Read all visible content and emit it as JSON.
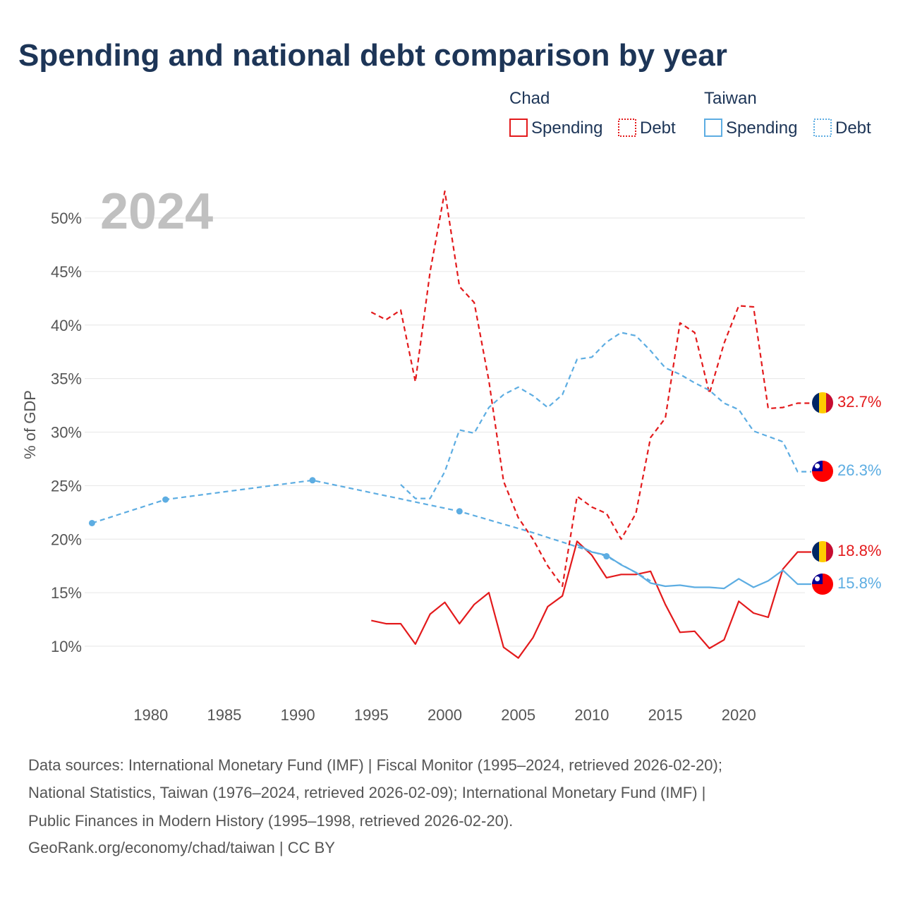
{
  "title": "Spending and national debt comparison by year",
  "year_label": "2024",
  "legend": [
    {
      "group": "Chad",
      "items": [
        {
          "label": "Spending",
          "color": "#e31a1c",
          "style": "solid"
        },
        {
          "label": "Debt",
          "color": "#e31a1c",
          "style": "dotted"
        }
      ]
    },
    {
      "group": "Taiwan",
      "items": [
        {
          "label": "Spending",
          "color": "#5dade2",
          "style": "solid"
        },
        {
          "label": "Debt",
          "color": "#5dade2",
          "style": "dotted"
        }
      ]
    }
  ],
  "chart_data": {
    "type": "line",
    "ylabel": "% of GDP",
    "ylim": [
      6,
      54
    ],
    "xlim": [
      1975.5,
      2024.5
    ],
    "x_ticks": [
      1980,
      1985,
      1990,
      1995,
      2000,
      2005,
      2010,
      2015,
      2020
    ],
    "x_tick_labels": [
      "1980",
      "1985",
      "1990",
      "1995",
      "2000",
      "2005",
      "2010",
      "2015",
      "2020"
    ],
    "y_ticks": [
      10,
      15,
      20,
      25,
      30,
      35,
      40,
      45,
      50
    ],
    "y_tick_labels": [
      "10%",
      "15%",
      "20%",
      "25%",
      "30%",
      "35%",
      "40%",
      "45%",
      "50%"
    ],
    "series": [
      {
        "name": "Chad Spending",
        "country": "Chad",
        "color": "#e31a1c",
        "dash": "",
        "x": [
          1995,
          1996,
          1997,
          1998,
          1999,
          2000,
          2001,
          2002,
          2003,
          2004,
          2005,
          2006,
          2007,
          2008,
          2009,
          2010,
          2011,
          2012,
          2013,
          2014,
          2015,
          2016,
          2017,
          2018,
          2019,
          2020,
          2021,
          2022,
          2023,
          2024
        ],
        "values": [
          12.4,
          12.1,
          12.1,
          10.2,
          13.0,
          14.1,
          12.1,
          13.9,
          15.0,
          9.9,
          8.9,
          10.8,
          13.7,
          14.7,
          19.8,
          18.5,
          16.4,
          16.7,
          16.7,
          17.0,
          13.9,
          11.3,
          11.4,
          9.8,
          10.6,
          14.2,
          13.1,
          12.7,
          17.2,
          18.8
        ],
        "end_label": "18.8%"
      },
      {
        "name": "Chad Debt",
        "country": "Chad",
        "color": "#e31a1c",
        "dash": "7,5",
        "x": [
          1995,
          1996,
          1997,
          1998,
          1999,
          2000,
          2001,
          2002,
          2003,
          2004,
          2005,
          2006,
          2007,
          2008,
          2009,
          2010,
          2011,
          2012,
          2013,
          2014,
          2015,
          2016,
          2017,
          2018,
          2019,
          2020,
          2021,
          2022,
          2023,
          2024
        ],
        "values": [
          41.2,
          40.5,
          41.4,
          34.7,
          45.0,
          52.5,
          43.6,
          42.1,
          34.8,
          25.4,
          22.0,
          20.0,
          17.5,
          15.6,
          24.0,
          23.0,
          22.4,
          20.0,
          22.4,
          29.5,
          31.3,
          40.2,
          39.3,
          33.6,
          38.3,
          41.8,
          41.7,
          32.2,
          32.3,
          32.7
        ],
        "end_label": "32.7%"
      },
      {
        "name": "Taiwan Spending",
        "country": "Taiwan",
        "color": "#5dade2",
        "dash": "",
        "x": [
          2009,
          2010,
          2011,
          2012,
          2013,
          2014,
          2015,
          2016,
          2017,
          2018,
          2019,
          2020,
          2021,
          2022,
          2023,
          2024
        ],
        "values": [
          19.5,
          18.8,
          18.5,
          17.6,
          16.9,
          15.9,
          15.6,
          15.7,
          15.5,
          15.5,
          15.4,
          16.3,
          15.5,
          16.1,
          17.1,
          15.8
        ],
        "end_label": "15.8%"
      },
      {
        "name": "Taiwan Debt (historical)",
        "country": "Taiwan",
        "color": "#5dade2",
        "dash": "7,5",
        "x": [
          1976,
          1981,
          1991,
          2001,
          2006,
          2011,
          2014
        ],
        "values": [
          21.5,
          23.7,
          25.5,
          22.6,
          20.6,
          18.4,
          16.1
        ],
        "markers": [
          1976,
          1981,
          1991,
          2001,
          2011
        ]
      },
      {
        "name": "Taiwan Debt",
        "country": "Taiwan",
        "color": "#5dade2",
        "dash": "7,5",
        "x": [
          1997,
          1998,
          1999,
          2000,
          2001,
          2002,
          2003,
          2004,
          2005,
          2006,
          2007,
          2008,
          2009,
          2010,
          2011,
          2012,
          2013,
          2014,
          2015,
          2016,
          2017,
          2018,
          2019,
          2020,
          2021,
          2022,
          2023,
          2024
        ],
        "values": [
          25.1,
          23.8,
          23.8,
          26.3,
          30.2,
          29.9,
          32.3,
          33.5,
          34.2,
          33.4,
          32.3,
          33.5,
          36.8,
          37.0,
          38.4,
          39.3,
          39.0,
          37.6,
          36.0,
          35.4,
          34.6,
          33.9,
          32.7,
          32.1,
          30.1,
          29.6,
          29.1,
          26.3
        ],
        "end_label": "26.3%"
      }
    ]
  },
  "sources": [
    "Data sources: International Monetary Fund (IMF) | Fiscal Monitor (1995–2024, retrieved 2026-02-20);",
    "National Statistics, Taiwan (1976–2024, retrieved 2026-02-09); International Monetary Fund (IMF) |",
    "Public Finances in Modern History (1995–1998, retrieved 2026-02-20).",
    "GeoRank.org/economy/chad/taiwan | CC BY"
  ]
}
